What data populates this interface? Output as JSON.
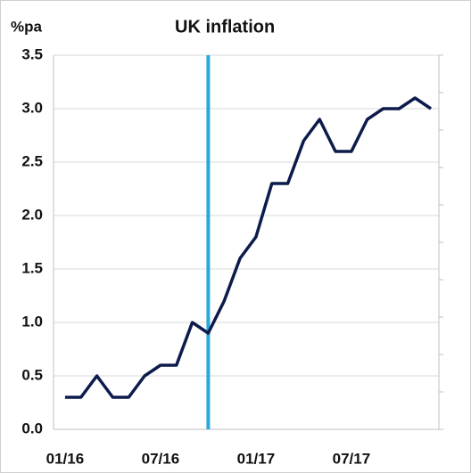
{
  "chart_data": {
    "type": "line",
    "title": "UK inflation",
    "y_label": "%pa",
    "categories": [
      "01/16",
      null,
      null,
      null,
      null,
      null,
      "07/16",
      null,
      null,
      null,
      null,
      null,
      "01/17",
      null,
      null,
      null,
      null,
      null,
      "07/17",
      null,
      null,
      null,
      null,
      null
    ],
    "series": [
      {
        "name": "UK inflation",
        "color": "#0d1b4b",
        "values": [
          0.3,
          0.3,
          0.5,
          0.3,
          0.3,
          0.5,
          0.6,
          0.6,
          1.0,
          0.9,
          1.2,
          1.6,
          1.8,
          2.3,
          2.3,
          2.7,
          2.9,
          2.6,
          2.6,
          2.9,
          3.0,
          3.0,
          3.1,
          3.0
        ]
      }
    ],
    "ylim": [
      0,
      3.5
    ],
    "yticks": [
      {
        "value": 0,
        "label": "0.0"
      },
      {
        "value": 0.5,
        "label": "0.5"
      },
      {
        "value": 1,
        "label": "1.0"
      },
      {
        "value": 1.5,
        "label": "1.5"
      },
      {
        "value": 2,
        "label": "2.0"
      },
      {
        "value": 2.5,
        "label": "2.5"
      },
      {
        "value": 3,
        "label": "3.0"
      },
      {
        "value": 3.5,
        "label": "3.5"
      }
    ],
    "grid": true,
    "vline_index": 9,
    "vline_color": "#29a8dd"
  }
}
